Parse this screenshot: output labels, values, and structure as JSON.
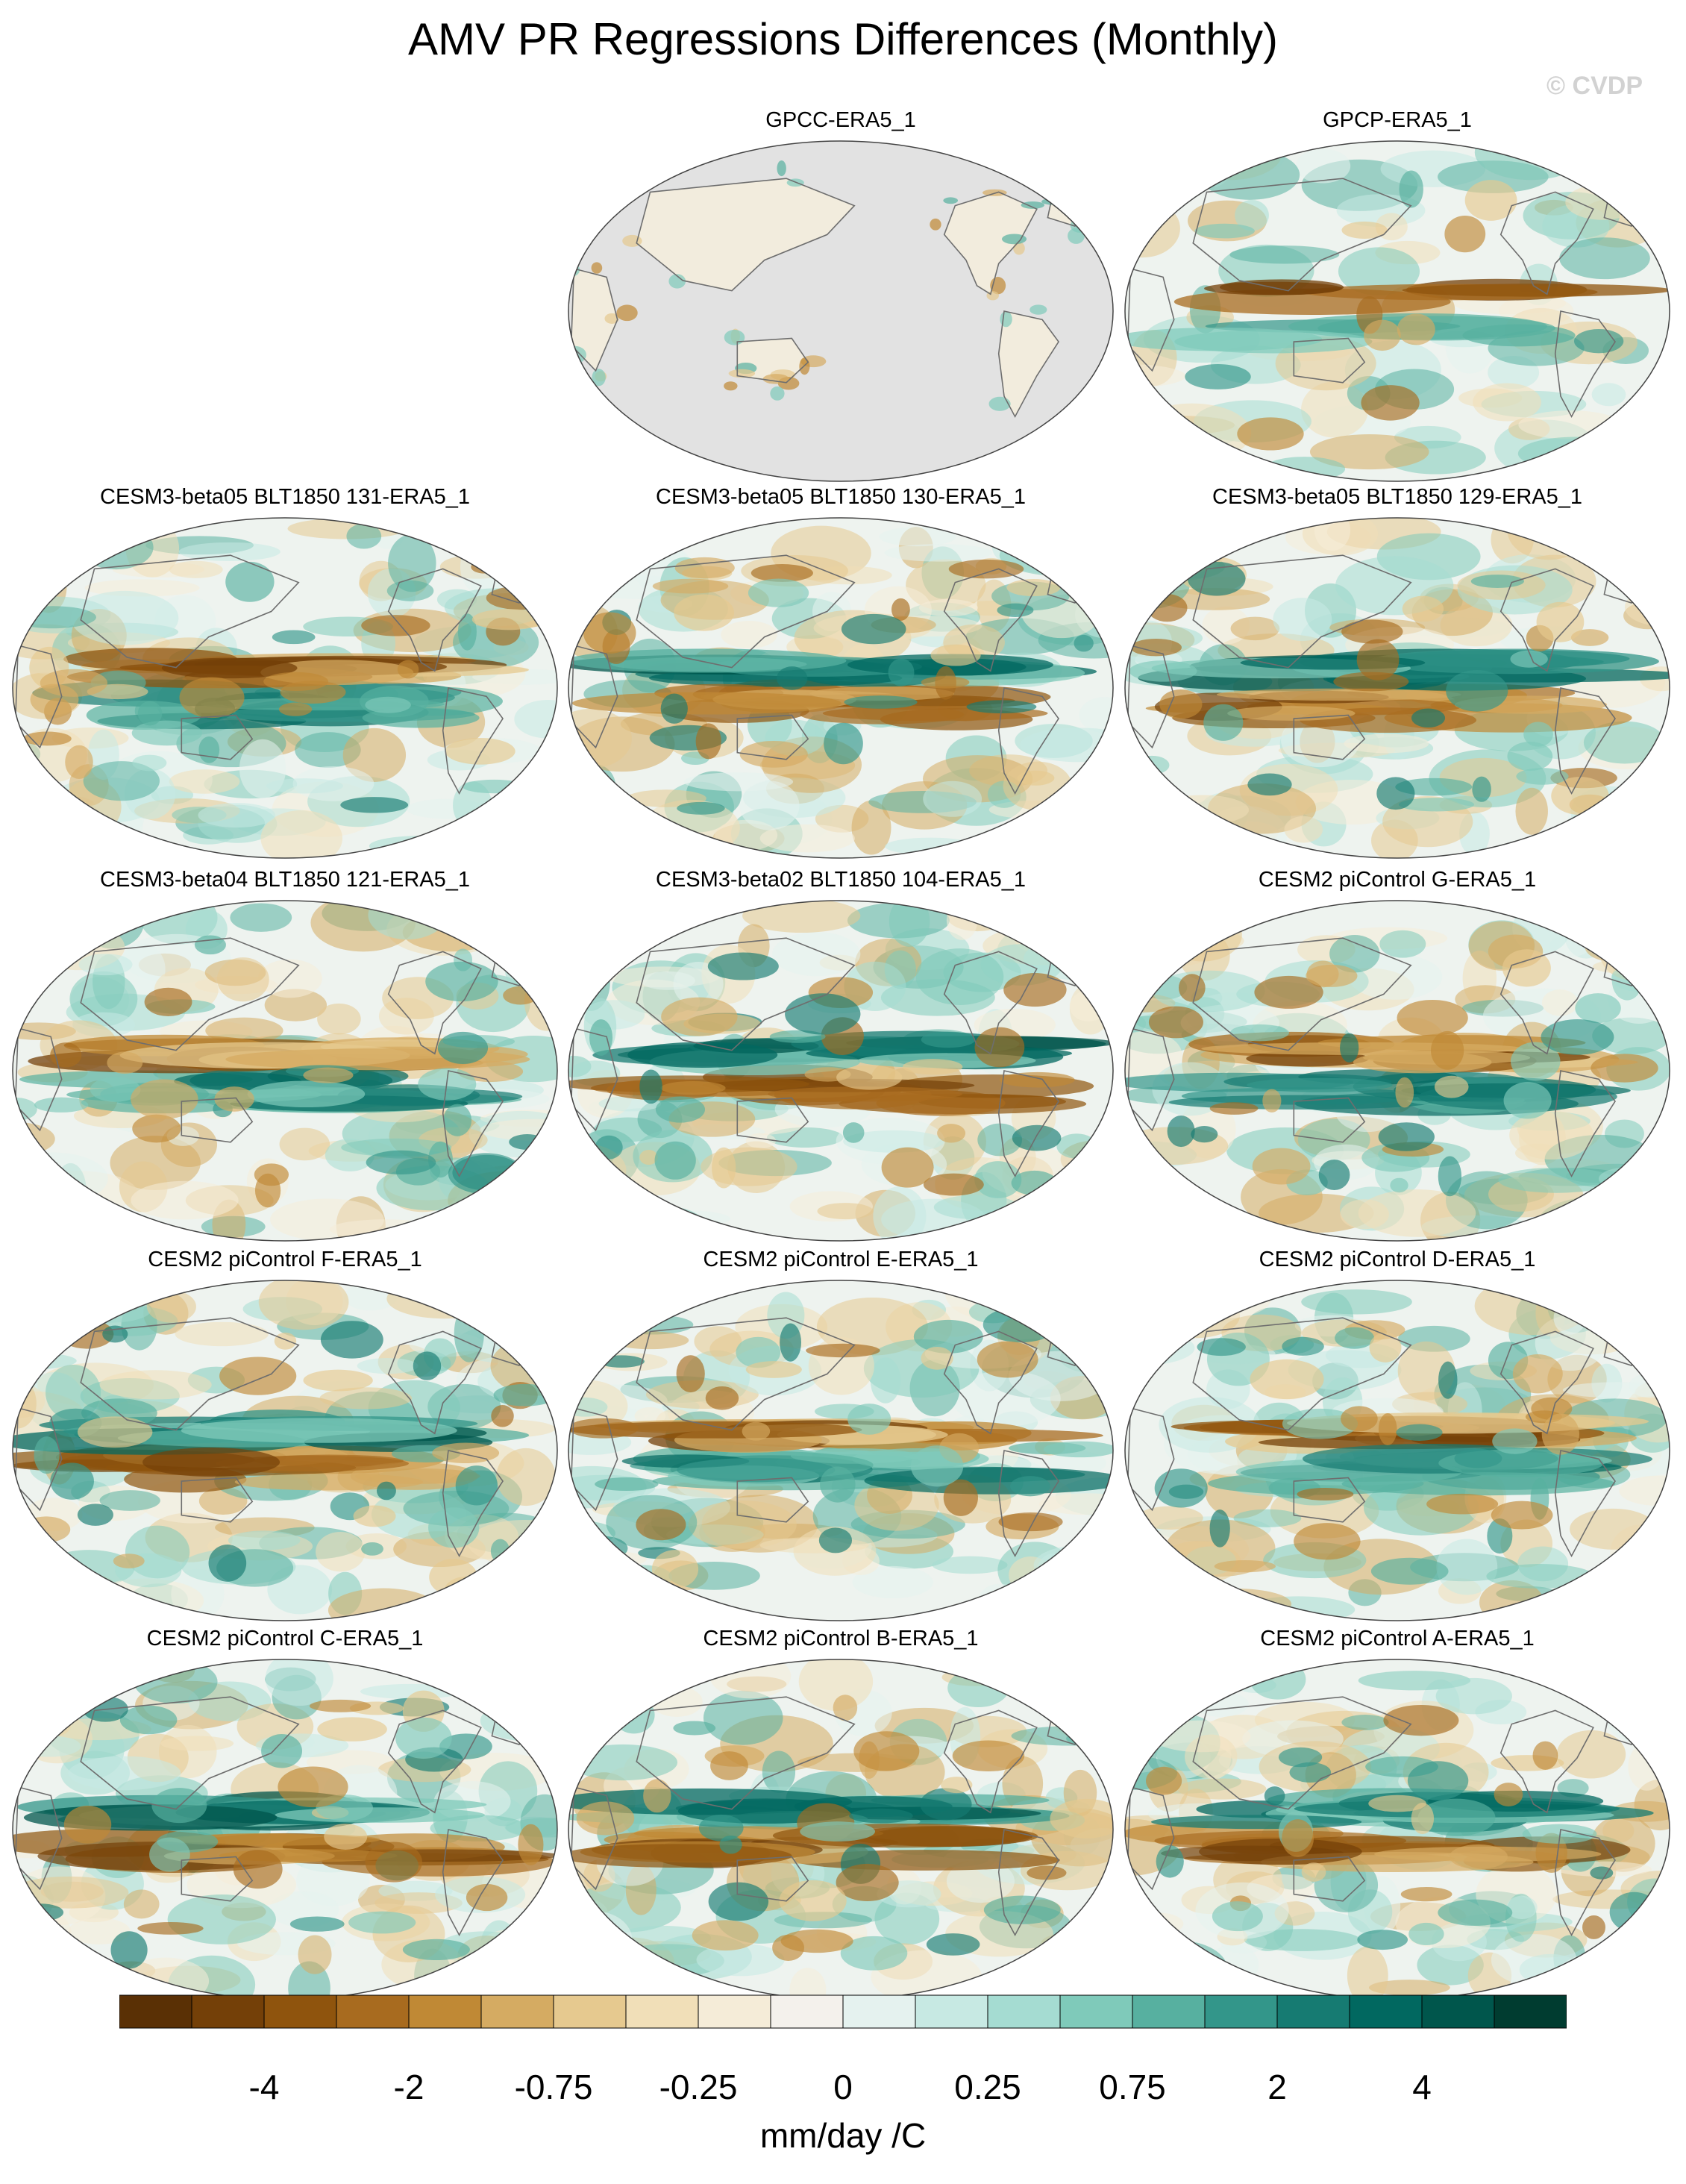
{
  "title": "AMV PR Regressions Differences (Monthly)",
  "copyright": "© CVDP",
  "panels": [
    {
      "title": "GPCC-ERA5_1",
      "style": "land"
    },
    {
      "title": "GPCP-ERA5_1",
      "style": "weak"
    },
    {
      "title": "CESM3-beta05 BLT1850 131-ERA5_1",
      "style": "strong"
    },
    {
      "title": "CESM3-beta05 BLT1850 130-ERA5_1",
      "style": "strong"
    },
    {
      "title": "CESM3-beta05 BLT1850 129-ERA5_1",
      "style": "strong"
    },
    {
      "title": "CESM3-beta04 BLT1850 121-ERA5_1",
      "style": "strong"
    },
    {
      "title": "CESM3-beta02 BLT1850 104-ERA5_1",
      "style": "strong"
    },
    {
      "title": "CESM2 piControl G-ERA5_1",
      "style": "strong"
    },
    {
      "title": "CESM2 piControl F-ERA5_1",
      "style": "strong"
    },
    {
      "title": "CESM2 piControl E-ERA5_1",
      "style": "strong"
    },
    {
      "title": "CESM2 piControl D-ERA5_1",
      "style": "strong"
    },
    {
      "title": "CESM2 piControl C-ERA5_1",
      "style": "strong"
    },
    {
      "title": "CESM2 piControl B-ERA5_1",
      "style": "strong"
    },
    {
      "title": "CESM2 piControl A-ERA5_1",
      "style": "strong"
    }
  ],
  "colorbar": {
    "colors": [
      "#5a3005",
      "#744008",
      "#8f540d",
      "#a86b1f",
      "#c08935",
      "#d5ab62",
      "#e6c98f",
      "#f1dfb8",
      "#f5ecd8",
      "#f4f1ec",
      "#e5f2ef",
      "#c7e9e3",
      "#a5dcd2",
      "#7fcaba",
      "#57b0a0",
      "#33968a",
      "#167b72",
      "#016860",
      "#00564c",
      "#003c30"
    ],
    "labels": [
      "-4",
      "-2",
      "-0.75",
      "-0.25",
      "0",
      "0.25",
      "0.75",
      "2",
      "4"
    ],
    "label_boundaries": [
      2,
      4,
      6,
      8,
      10,
      12,
      14,
      16,
      18
    ],
    "unit": "mm/day /C"
  }
}
